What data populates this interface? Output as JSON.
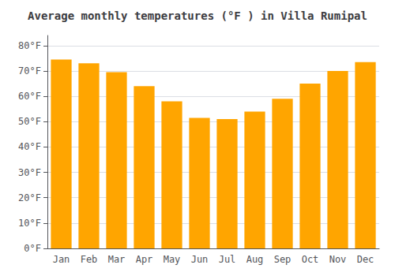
{
  "chart_data": {
    "type": "bar",
    "title": "Average monthly temperatures (°F ) in Villa Rumipal",
    "categories": [
      "Jan",
      "Feb",
      "Mar",
      "Apr",
      "May",
      "Jun",
      "Jul",
      "Aug",
      "Sep",
      "Oct",
      "Nov",
      "Dec"
    ],
    "values": [
      74.5,
      73.0,
      69.5,
      64.0,
      58.0,
      51.5,
      51.0,
      54.0,
      59.0,
      65.0,
      70.0,
      73.5
    ],
    "color": "#FFA500",
    "ylim": [
      0,
      84
    ],
    "yticks": [
      {
        "value": 0,
        "label": "0°F"
      },
      {
        "value": 10,
        "label": "10°F"
      },
      {
        "value": 20,
        "label": "20°F"
      },
      {
        "value": 30,
        "label": "30°F"
      },
      {
        "value": 40,
        "label": "40°F"
      },
      {
        "value": 50,
        "label": "50°F"
      },
      {
        "value": 60,
        "label": "60°F"
      },
      {
        "value": 70,
        "label": "70°F"
      },
      {
        "value": 80,
        "label": "80°F"
      }
    ],
    "grid": true
  }
}
